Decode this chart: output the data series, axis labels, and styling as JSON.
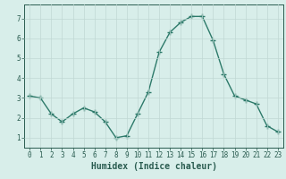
{
  "x": [
    0,
    1,
    2,
    3,
    4,
    5,
    6,
    7,
    8,
    9,
    10,
    11,
    12,
    13,
    14,
    15,
    16,
    17,
    18,
    19,
    20,
    21,
    22,
    23
  ],
  "y": [
    3.1,
    3.0,
    2.2,
    1.8,
    2.2,
    2.5,
    2.3,
    1.8,
    1.0,
    1.1,
    2.2,
    3.3,
    5.3,
    6.3,
    6.8,
    7.1,
    7.1,
    5.9,
    4.2,
    3.1,
    2.9,
    2.7,
    1.6,
    1.3
  ],
  "line_color": "#2d7a6a",
  "marker": "+",
  "markersize": 4,
  "linewidth": 1.0,
  "xlabel": "Humidex (Indice chaleur)",
  "xlim": [
    -0.5,
    23.5
  ],
  "ylim": [
    0.5,
    7.7
  ],
  "yticks": [
    1,
    2,
    3,
    4,
    5,
    6,
    7
  ],
  "xticks": [
    0,
    1,
    2,
    3,
    4,
    5,
    6,
    7,
    8,
    9,
    10,
    11,
    12,
    13,
    14,
    15,
    16,
    17,
    18,
    19,
    20,
    21,
    22,
    23
  ],
  "bg_color": "#d8eeea",
  "grid_color": "#c0d8d4",
  "axis_color": "#2a5c50",
  "tick_fontsize": 5.5,
  "label_fontsize": 7.0
}
